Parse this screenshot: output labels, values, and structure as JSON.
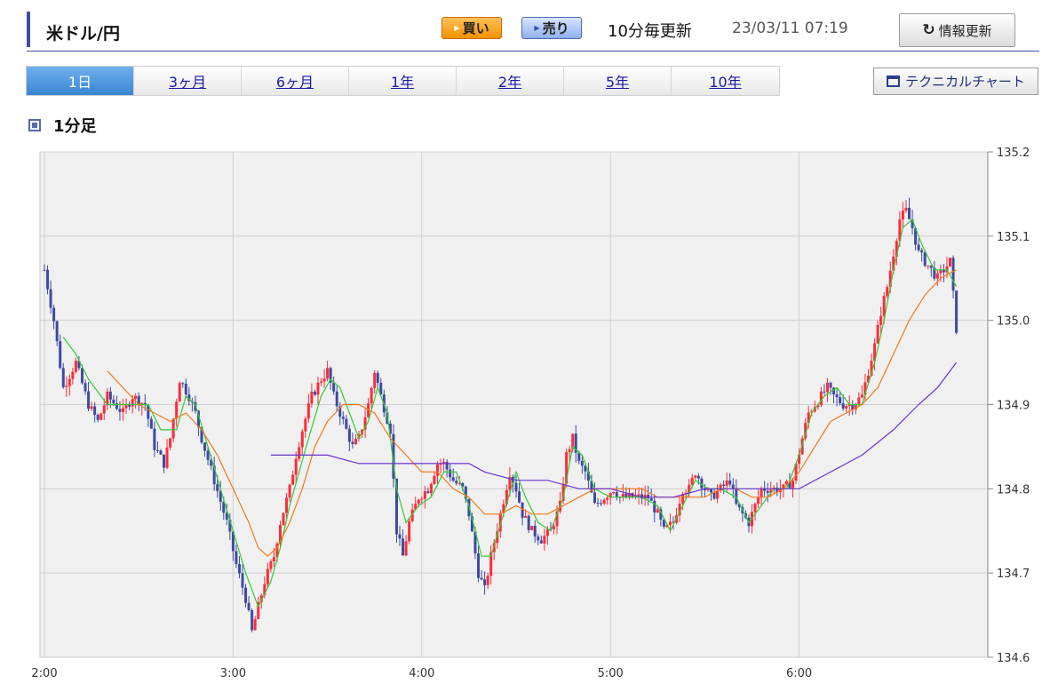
{
  "header": {
    "title": "米ドル/円",
    "buy_label": "買い",
    "sell_label": "売り",
    "update_note": "10分毎更新",
    "timestamp": "23/03/11 07:19",
    "refresh_label": "情報更新"
  },
  "tabs": [
    {
      "label": "1日",
      "active": true
    },
    {
      "label": "3ヶ月",
      "active": false
    },
    {
      "label": "6ヶ月",
      "active": false
    },
    {
      "label": "1年",
      "active": false
    },
    {
      "label": "2年",
      "active": false
    },
    {
      "label": "5年",
      "active": false
    },
    {
      "label": "10年",
      "active": false
    }
  ],
  "technical_chart_label": "テクニカルチャート",
  "section_label": "1分足",
  "colors": {
    "accent": "#3c4fa0",
    "up_candle": "#ff2b3a",
    "down_candle": "#3d4aa3",
    "ma_short": "#33cc33",
    "ma_mid": "#f07a1a",
    "ma_long": "#6633cc",
    "plot_bg": "#f0f0f0"
  },
  "chart_data": {
    "type": "candlestick",
    "interval": "1分足",
    "x_ticks": [
      "2:00",
      "3:00",
      "4:00",
      "5:00",
      "6:00"
    ],
    "y_ticks": [
      135.2,
      135.1,
      135.0,
      134.9,
      134.8,
      134.7,
      134.6
    ],
    "ylim": [
      134.6,
      135.2
    ],
    "grid": true,
    "y_axis_position": "right",
    "close_path": [
      [
        0,
        135.06
      ],
      [
        3,
        135.0
      ],
      [
        6,
        134.92
      ],
      [
        10,
        134.95
      ],
      [
        14,
        134.9
      ],
      [
        17,
        134.88
      ],
      [
        20,
        134.91
      ],
      [
        25,
        134.89
      ],
      [
        28,
        134.91
      ],
      [
        32,
        134.9
      ],
      [
        35,
        134.85
      ],
      [
        38,
        134.83
      ],
      [
        40,
        134.86
      ],
      [
        43,
        134.93
      ],
      [
        46,
        134.91
      ],
      [
        48,
        134.89
      ],
      [
        50,
        134.86
      ],
      [
        54,
        134.81
      ],
      [
        58,
        134.76
      ],
      [
        61,
        134.71
      ],
      [
        64,
        134.67
      ],
      [
        66,
        134.63
      ],
      [
        68,
        134.66
      ],
      [
        70,
        134.69
      ],
      [
        73,
        134.72
      ],
      [
        75,
        134.76
      ],
      [
        78,
        134.8
      ],
      [
        80,
        134.84
      ],
      [
        82,
        134.87
      ],
      [
        85,
        134.91
      ],
      [
        88,
        134.93
      ],
      [
        90,
        134.94
      ],
      [
        92,
        134.91
      ],
      [
        95,
        134.88
      ],
      [
        98,
        134.85
      ],
      [
        100,
        134.86
      ],
      [
        103,
        134.9
      ],
      [
        105,
        134.94
      ],
      [
        107,
        134.91
      ],
      [
        110,
        134.87
      ],
      [
        112,
        134.75
      ],
      [
        114,
        134.72
      ],
      [
        116,
        134.76
      ],
      [
        119,
        134.79
      ],
      [
        122,
        134.8
      ],
      [
        125,
        134.83
      ],
      [
        127,
        134.83
      ],
      [
        130,
        134.81
      ],
      [
        133,
        134.8
      ],
      [
        135,
        134.77
      ],
      [
        138,
        134.7
      ],
      [
        140,
        134.68
      ],
      [
        142,
        134.72
      ],
      [
        145,
        134.77
      ],
      [
        148,
        134.82
      ],
      [
        150,
        134.8
      ],
      [
        152,
        134.77
      ],
      [
        155,
        134.75
      ],
      [
        158,
        134.74
      ],
      [
        161,
        134.75
      ],
      [
        164,
        134.78
      ],
      [
        166,
        134.84
      ],
      [
        168,
        134.86
      ],
      [
        170,
        134.83
      ],
      [
        172,
        134.82
      ],
      [
        175,
        134.78
      ],
      [
        178,
        134.79
      ],
      [
        181,
        134.8
      ],
      [
        183,
        134.79
      ],
      [
        186,
        134.79
      ],
      [
        189,
        134.79
      ],
      [
        192,
        134.79
      ],
      [
        195,
        134.77
      ],
      [
        197,
        134.75
      ],
      [
        200,
        134.76
      ],
      [
        203,
        134.8
      ],
      [
        205,
        134.8
      ],
      [
        207,
        134.82
      ],
      [
        210,
        134.8
      ],
      [
        212,
        134.79
      ],
      [
        215,
        134.8
      ],
      [
        218,
        134.81
      ],
      [
        220,
        134.78
      ],
      [
        222,
        134.77
      ],
      [
        224,
        134.76
      ],
      [
        226,
        134.78
      ],
      [
        228,
        134.8
      ],
      [
        230,
        134.8
      ],
      [
        232,
        134.8
      ],
      [
        235,
        134.8
      ],
      [
        238,
        134.81
      ],
      [
        241,
        134.86
      ],
      [
        243,
        134.89
      ],
      [
        245,
        134.9
      ],
      [
        247,
        134.91
      ],
      [
        249,
        134.92
      ],
      [
        251,
        134.91
      ],
      [
        254,
        134.9
      ],
      [
        257,
        134.9
      ],
      [
        260,
        134.91
      ],
      [
        262,
        134.94
      ],
      [
        264,
        134.97
      ],
      [
        266,
        135.01
      ],
      [
        268,
        135.04
      ],
      [
        270,
        135.08
      ],
      [
        272,
        135.12
      ],
      [
        274,
        135.13
      ],
      [
        276,
        135.11
      ],
      [
        278,
        135.08
      ],
      [
        280,
        135.07
      ],
      [
        282,
        135.06
      ],
      [
        284,
        135.05
      ],
      [
        286,
        135.06
      ],
      [
        288,
        135.07
      ],
      [
        289,
        135.03
      ],
      [
        290,
        134.99
      ]
    ],
    "moving_averages": [
      {
        "color": "#33cc33",
        "points": [
          [
            6,
            134.98
          ],
          [
            10,
            134.96
          ],
          [
            14,
            134.93
          ],
          [
            20,
            134.9
          ],
          [
            28,
            134.9
          ],
          [
            33,
            134.9
          ],
          [
            37,
            134.87
          ],
          [
            42,
            134.87
          ],
          [
            45,
            134.91
          ],
          [
            48,
            134.9
          ],
          [
            52,
            134.85
          ],
          [
            56,
            134.8
          ],
          [
            60,
            134.75
          ],
          [
            64,
            134.7
          ],
          [
            68,
            134.66
          ],
          [
            72,
            134.69
          ],
          [
            75,
            134.73
          ],
          [
            78,
            134.78
          ],
          [
            81,
            134.82
          ],
          [
            84,
            134.86
          ],
          [
            88,
            134.91
          ],
          [
            91,
            134.93
          ],
          [
            94,
            134.92
          ],
          [
            97,
            134.89
          ],
          [
            100,
            134.86
          ],
          [
            103,
            134.88
          ],
          [
            106,
            134.92
          ],
          [
            109,
            134.89
          ],
          [
            112,
            134.8
          ],
          [
            115,
            134.76
          ],
          [
            119,
            134.78
          ],
          [
            123,
            134.79
          ],
          [
            127,
            134.82
          ],
          [
            131,
            134.82
          ],
          [
            135,
            134.78
          ],
          [
            139,
            134.72
          ],
          [
            142,
            134.72
          ],
          [
            146,
            134.77
          ],
          [
            150,
            134.82
          ],
          [
            153,
            134.79
          ],
          [
            157,
            134.76
          ],
          [
            161,
            134.75
          ],
          [
            165,
            134.79
          ],
          [
            168,
            134.85
          ],
          [
            171,
            134.84
          ],
          [
            175,
            134.8
          ],
          [
            180,
            134.79
          ],
          [
            185,
            134.79
          ],
          [
            190,
            134.79
          ],
          [
            195,
            134.78
          ],
          [
            199,
            134.75
          ],
          [
            203,
            134.78
          ],
          [
            207,
            134.81
          ],
          [
            211,
            134.8
          ],
          [
            215,
            134.8
          ],
          [
            220,
            134.79
          ],
          [
            224,
            134.76
          ],
          [
            228,
            134.78
          ],
          [
            232,
            134.8
          ],
          [
            236,
            134.8
          ],
          [
            240,
            134.84
          ],
          [
            244,
            134.89
          ],
          [
            248,
            134.91
          ],
          [
            252,
            134.92
          ],
          [
            256,
            134.9
          ],
          [
            260,
            134.9
          ],
          [
            264,
            134.95
          ],
          [
            267,
            135.0
          ],
          [
            270,
            135.06
          ],
          [
            273,
            135.11
          ],
          [
            276,
            135.12
          ],
          [
            279,
            135.09
          ],
          [
            283,
            135.06
          ],
          [
            287,
            135.06
          ],
          [
            290,
            135.04
          ]
        ]
      },
      {
        "color": "#f07a1a",
        "points": [
          [
            20,
            134.94
          ],
          [
            25,
            134.92
          ],
          [
            30,
            134.9
          ],
          [
            35,
            134.89
          ],
          [
            40,
            134.88
          ],
          [
            45,
            134.89
          ],
          [
            50,
            134.87
          ],
          [
            55,
            134.84
          ],
          [
            60,
            134.8
          ],
          [
            65,
            134.76
          ],
          [
            68,
            134.73
          ],
          [
            71,
            134.72
          ],
          [
            74,
            134.73
          ],
          [
            78,
            134.76
          ],
          [
            82,
            134.8
          ],
          [
            86,
            134.85
          ],
          [
            90,
            134.88
          ],
          [
            95,
            134.9
          ],
          [
            100,
            134.9
          ],
          [
            105,
            134.89
          ],
          [
            110,
            134.86
          ],
          [
            115,
            134.84
          ],
          [
            120,
            134.82
          ],
          [
            125,
            134.82
          ],
          [
            130,
            134.8
          ],
          [
            135,
            134.79
          ],
          [
            140,
            134.77
          ],
          [
            145,
            134.77
          ],
          [
            150,
            134.78
          ],
          [
            155,
            134.77
          ],
          [
            160,
            134.77
          ],
          [
            165,
            134.78
          ],
          [
            170,
            134.79
          ],
          [
            175,
            134.8
          ],
          [
            180,
            134.8
          ],
          [
            185,
            134.8
          ],
          [
            190,
            134.8
          ],
          [
            195,
            134.79
          ],
          [
            200,
            134.79
          ],
          [
            205,
            134.79
          ],
          [
            210,
            134.79
          ],
          [
            215,
            134.8
          ],
          [
            220,
            134.8
          ],
          [
            225,
            134.79
          ],
          [
            230,
            134.79
          ],
          [
            235,
            134.8
          ],
          [
            240,
            134.82
          ],
          [
            245,
            134.85
          ],
          [
            250,
            134.88
          ],
          [
            255,
            134.89
          ],
          [
            260,
            134.9
          ],
          [
            265,
            134.92
          ],
          [
            270,
            134.96
          ],
          [
            275,
            135.0
          ],
          [
            280,
            135.03
          ],
          [
            285,
            135.05
          ],
          [
            290,
            135.06
          ]
        ]
      },
      {
        "color": "#6633cc",
        "points": [
          [
            72,
            134.84
          ],
          [
            80,
            134.84
          ],
          [
            90,
            134.84
          ],
          [
            100,
            134.83
          ],
          [
            110,
            134.83
          ],
          [
            120,
            134.83
          ],
          [
            130,
            134.83
          ],
          [
            135,
            134.83
          ],
          [
            140,
            134.82
          ],
          [
            150,
            134.81
          ],
          [
            160,
            134.81
          ],
          [
            170,
            134.8
          ],
          [
            180,
            134.8
          ],
          [
            190,
            134.79
          ],
          [
            200,
            134.79
          ],
          [
            210,
            134.8
          ],
          [
            220,
            134.8
          ],
          [
            230,
            134.8
          ],
          [
            235,
            134.8
          ],
          [
            240,
            134.8
          ],
          [
            250,
            134.82
          ],
          [
            260,
            134.84
          ],
          [
            270,
            134.87
          ],
          [
            278,
            134.9
          ],
          [
            284,
            134.92
          ],
          [
            290,
            134.95
          ]
        ]
      }
    ]
  }
}
